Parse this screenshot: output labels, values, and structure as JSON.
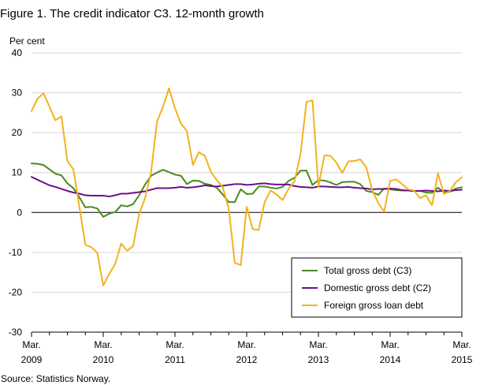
{
  "title": "Figure 1. The credit indicator C3. 12-month growth",
  "source": "Source: Statistics Norway.",
  "chart_data": {
    "type": "line",
    "title": "Figure 1. The credit indicator C3. 12-month growth",
    "ylabel": "Per cent",
    "xlabel": "",
    "ylim": [
      -30,
      40
    ],
    "xlim": [
      "2009-03",
      "2015-03"
    ],
    "y_ticks": [
      -30,
      -20,
      -10,
      0,
      10,
      20,
      30,
      40
    ],
    "x_ticks": [
      {
        "month": "Mar.",
        "year": "2009",
        "x": "2009-03"
      },
      {
        "month": "Mar.",
        "year": "2010",
        "x": "2010-03"
      },
      {
        "month": "Mar.",
        "year": "2011",
        "x": "2011-03"
      },
      {
        "month": "Mar.",
        "year": "2012",
        "x": "2012-03"
      },
      {
        "month": "Mar.",
        "year": "2013",
        "x": "2013-03"
      },
      {
        "month": "Mar.",
        "year": "2014",
        "x": "2014-03"
      },
      {
        "month": "Mar.",
        "year": "2015",
        "x": "2015-03"
      }
    ],
    "grid": "horizontal",
    "legend_position": "bottom-right",
    "series": [
      {
        "name": "Total gross debt (C3)",
        "color": "#4a8a1c",
        "values": [
          [
            "2009-03",
            12.3
          ],
          [
            "2009-04",
            12.2
          ],
          [
            "2009-05",
            11.9
          ],
          [
            "2009-06",
            10.8
          ],
          [
            "2009-07",
            9.7
          ],
          [
            "2009-08",
            9.3
          ],
          [
            "2009-09",
            7.3
          ],
          [
            "2009-10",
            6.1
          ],
          [
            "2009-11",
            3.8
          ],
          [
            "2009-12",
            1.3
          ],
          [
            "2010-01",
            1.4
          ],
          [
            "2010-02",
            1.0
          ],
          [
            "2010-03",
            -1.1
          ],
          [
            "2010-04",
            -0.3
          ],
          [
            "2010-05",
            0.1
          ],
          [
            "2010-06",
            1.8
          ],
          [
            "2010-07",
            1.5
          ],
          [
            "2010-08",
            2.1
          ],
          [
            "2010-09",
            4.3
          ],
          [
            "2010-10",
            7.0
          ],
          [
            "2010-11",
            9.2
          ],
          [
            "2010-12",
            10.0
          ],
          [
            "2011-01",
            10.7
          ],
          [
            "2011-02",
            10.1
          ],
          [
            "2011-03",
            9.5
          ],
          [
            "2011-04",
            9.2
          ],
          [
            "2011-05",
            7.1
          ],
          [
            "2011-06",
            8.0
          ],
          [
            "2011-07",
            7.9
          ],
          [
            "2011-08",
            7.2
          ],
          [
            "2011-09",
            6.9
          ],
          [
            "2011-10",
            6.2
          ],
          [
            "2011-11",
            4.5
          ],
          [
            "2011-12",
            2.6
          ],
          [
            "2012-01",
            2.6
          ],
          [
            "2012-02",
            5.8
          ],
          [
            "2012-03",
            4.6
          ],
          [
            "2012-04",
            4.7
          ],
          [
            "2012-05",
            6.5
          ],
          [
            "2012-06",
            6.5
          ],
          [
            "2012-07",
            6.2
          ],
          [
            "2012-08",
            6.0
          ],
          [
            "2012-09",
            6.4
          ],
          [
            "2012-10",
            7.9
          ],
          [
            "2012-11",
            8.7
          ],
          [
            "2012-12",
            10.5
          ],
          [
            "2013-01",
            10.5
          ],
          [
            "2013-02",
            6.9
          ],
          [
            "2013-03",
            8.1
          ],
          [
            "2013-04",
            8.0
          ],
          [
            "2013-05",
            7.5
          ],
          [
            "2013-06",
            6.9
          ],
          [
            "2013-07",
            7.6
          ],
          [
            "2013-08",
            7.7
          ],
          [
            "2013-09",
            7.7
          ],
          [
            "2013-10",
            7.1
          ],
          [
            "2013-11",
            5.4
          ],
          [
            "2013-12",
            5.1
          ],
          [
            "2014-01",
            4.4
          ],
          [
            "2014-02",
            6.0
          ],
          [
            "2014-03",
            5.8
          ],
          [
            "2014-04",
            5.6
          ],
          [
            "2014-05",
            5.5
          ],
          [
            "2014-06",
            5.5
          ],
          [
            "2014-07",
            5.4
          ],
          [
            "2014-08",
            5.4
          ],
          [
            "2014-09",
            5.0
          ],
          [
            "2014-10",
            4.9
          ],
          [
            "2014-11",
            6.2
          ],
          [
            "2014-12",
            5.0
          ],
          [
            "2015-01",
            5.2
          ],
          [
            "2015-02",
            6.0
          ],
          [
            "2015-03",
            6.3
          ]
        ]
      },
      {
        "name": "Domestic gross debt (C2)",
        "color": "#6a0f8e",
        "values": [
          [
            "2009-03",
            8.9
          ],
          [
            "2009-04",
            8.2
          ],
          [
            "2009-05",
            7.5
          ],
          [
            "2009-06",
            6.8
          ],
          [
            "2009-07",
            6.4
          ],
          [
            "2009-08",
            5.9
          ],
          [
            "2009-09",
            5.4
          ],
          [
            "2009-10",
            5.0
          ],
          [
            "2009-11",
            4.7
          ],
          [
            "2009-12",
            4.3
          ],
          [
            "2010-01",
            4.2
          ],
          [
            "2010-02",
            4.2
          ],
          [
            "2010-03",
            4.2
          ],
          [
            "2010-04",
            4.0
          ],
          [
            "2010-05",
            4.3
          ],
          [
            "2010-06",
            4.7
          ],
          [
            "2010-07",
            4.7
          ],
          [
            "2010-08",
            4.9
          ],
          [
            "2010-09",
            5.1
          ],
          [
            "2010-10",
            5.3
          ],
          [
            "2010-11",
            5.7
          ],
          [
            "2010-12",
            6.1
          ],
          [
            "2011-01",
            6.1
          ],
          [
            "2011-02",
            6.1
          ],
          [
            "2011-03",
            6.2
          ],
          [
            "2011-04",
            6.4
          ],
          [
            "2011-05",
            6.2
          ],
          [
            "2011-06",
            6.3
          ],
          [
            "2011-07",
            6.5
          ],
          [
            "2011-08",
            6.8
          ],
          [
            "2011-09",
            6.6
          ],
          [
            "2011-10",
            6.5
          ],
          [
            "2011-11",
            6.7
          ],
          [
            "2011-12",
            6.9
          ],
          [
            "2012-01",
            7.1
          ],
          [
            "2012-02",
            7.1
          ],
          [
            "2012-03",
            6.9
          ],
          [
            "2012-04",
            7.0
          ],
          [
            "2012-05",
            7.2
          ],
          [
            "2012-06",
            7.3
          ],
          [
            "2012-07",
            7.1
          ],
          [
            "2012-08",
            7.0
          ],
          [
            "2012-09",
            7.0
          ],
          [
            "2012-10",
            7.0
          ],
          [
            "2012-11",
            6.6
          ],
          [
            "2012-12",
            6.4
          ],
          [
            "2013-01",
            6.3
          ],
          [
            "2013-02",
            6.2
          ],
          [
            "2013-03",
            6.5
          ],
          [
            "2013-04",
            6.5
          ],
          [
            "2013-05",
            6.4
          ],
          [
            "2013-06",
            6.3
          ],
          [
            "2013-07",
            6.3
          ],
          [
            "2013-08",
            6.4
          ],
          [
            "2013-09",
            6.2
          ],
          [
            "2013-10",
            6.1
          ],
          [
            "2013-11",
            6.0
          ],
          [
            "2013-12",
            5.8
          ],
          [
            "2014-01",
            5.9
          ],
          [
            "2014-02",
            5.9
          ],
          [
            "2014-03",
            6.0
          ],
          [
            "2014-04",
            5.9
          ],
          [
            "2014-05",
            5.6
          ],
          [
            "2014-06",
            5.5
          ],
          [
            "2014-07",
            5.4
          ],
          [
            "2014-08",
            5.4
          ],
          [
            "2014-09",
            5.5
          ],
          [
            "2014-10",
            5.4
          ],
          [
            "2014-11",
            5.3
          ],
          [
            "2014-12",
            5.5
          ],
          [
            "2015-01",
            5.4
          ],
          [
            "2015-02",
            5.6
          ],
          [
            "2015-03",
            5.7
          ]
        ]
      },
      {
        "name": "Foreign gross loan debt",
        "color": "#f2b21e",
        "values": [
          [
            "2009-03",
            25.4
          ],
          [
            "2009-04",
            28.5
          ],
          [
            "2009-05",
            29.9
          ],
          [
            "2009-06",
            26.5
          ],
          [
            "2009-07",
            23.1
          ],
          [
            "2009-08",
            24.1
          ],
          [
            "2009-09",
            12.9
          ],
          [
            "2009-10",
            10.8
          ],
          [
            "2009-11",
            1.5
          ],
          [
            "2009-12",
            -8.1
          ],
          [
            "2010-01",
            -8.7
          ],
          [
            "2010-02",
            -10.1
          ],
          [
            "2010-03",
            -18.3
          ],
          [
            "2010-04",
            -15.4
          ],
          [
            "2010-05",
            -12.9
          ],
          [
            "2010-06",
            -7.8
          ],
          [
            "2010-07",
            -9.6
          ],
          [
            "2010-08",
            -8.4
          ],
          [
            "2010-09",
            -0.4
          ],
          [
            "2010-10",
            3.6
          ],
          [
            "2010-11",
            10.1
          ],
          [
            "2010-12",
            22.8
          ],
          [
            "2011-01",
            26.5
          ],
          [
            "2011-02",
            31.1
          ],
          [
            "2011-03",
            26.1
          ],
          [
            "2011-04",
            22.3
          ],
          [
            "2011-05",
            20.4
          ],
          [
            "2011-06",
            11.9
          ],
          [
            "2011-07",
            15.1
          ],
          [
            "2011-08",
            14.2
          ],
          [
            "2011-09",
            10.2
          ],
          [
            "2011-10",
            8.1
          ],
          [
            "2011-11",
            6.3
          ],
          [
            "2011-12",
            0.9
          ],
          [
            "2012-01",
            -12.6
          ],
          [
            "2012-02",
            -13.2
          ],
          [
            "2012-03",
            1.4
          ],
          [
            "2012-04",
            -4.2
          ],
          [
            "2012-05",
            -4.4
          ],
          [
            "2012-06",
            2.6
          ],
          [
            "2012-07",
            5.5
          ],
          [
            "2012-08",
            4.5
          ],
          [
            "2012-09",
            3.1
          ],
          [
            "2012-10",
            5.9
          ],
          [
            "2012-11",
            7.8
          ],
          [
            "2012-12",
            14.6
          ],
          [
            "2013-01",
            27.7
          ],
          [
            "2013-02",
            28.1
          ],
          [
            "2013-03",
            6.5
          ],
          [
            "2013-04",
            14.3
          ],
          [
            "2013-05",
            14.2
          ],
          [
            "2013-06",
            12.5
          ],
          [
            "2013-07",
            9.9
          ],
          [
            "2013-08",
            12.8
          ],
          [
            "2013-09",
            12.9
          ],
          [
            "2013-10",
            13.3
          ],
          [
            "2013-11",
            11.3
          ],
          [
            "2013-12",
            5.6
          ],
          [
            "2014-01",
            2.4
          ],
          [
            "2014-02",
            0.2
          ],
          [
            "2014-03",
            7.9
          ],
          [
            "2014-04",
            8.3
          ],
          [
            "2014-05",
            7.1
          ],
          [
            "2014-06",
            5.8
          ],
          [
            "2014-07",
            5.5
          ],
          [
            "2014-08",
            3.6
          ],
          [
            "2014-09",
            4.3
          ],
          [
            "2014-10",
            1.8
          ],
          [
            "2014-11",
            9.8
          ],
          [
            "2014-12",
            4.6
          ],
          [
            "2015-01",
            5.4
          ],
          [
            "2015-02",
            7.6
          ],
          [
            "2015-03",
            8.8
          ]
        ]
      }
    ]
  }
}
